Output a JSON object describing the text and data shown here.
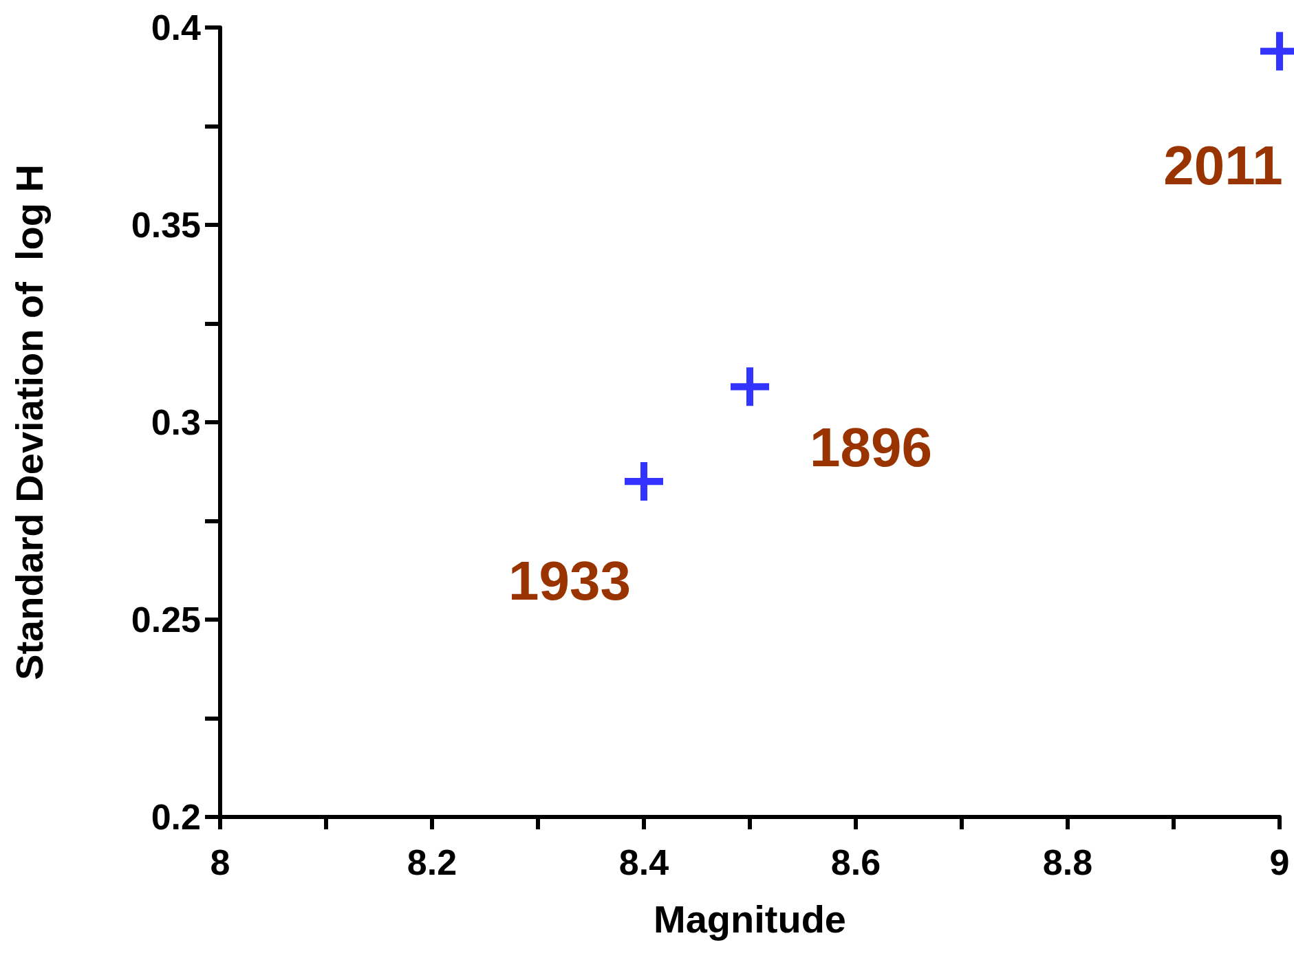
{
  "chart_data": {
    "type": "scatter",
    "xlabel": "Magnitude",
    "ylabel": "Standard Deviation of  log H",
    "series": [
      {
        "color": "#0000ff",
        "x": [
          8.4,
          8.5,
          9.0
        ],
        "values": [
          0.285,
          0.309,
          0.394
        ]
      }
    ],
    "marker": "cross",
    "xlim": [
      8,
      9
    ],
    "xticks": [
      8,
      8.2,
      8.4,
      8.6,
      8.8,
      9
    ],
    "ylim": [
      0.2,
      0.4
    ],
    "yticks": [
      0.2,
      0.25,
      0.3,
      0.35,
      0.4
    ],
    "annotations": [
      "1933",
      "1896",
      "2011"
    ]
  }
}
